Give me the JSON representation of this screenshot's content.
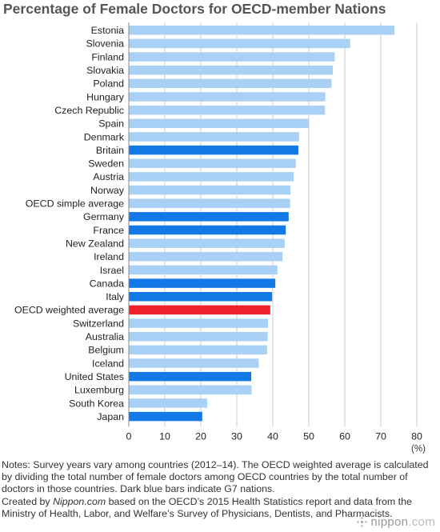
{
  "chart_data": {
    "type": "bar",
    "orientation": "horizontal",
    "title": "Percentage of Female Doctors for OECD-member Nations",
    "unit_label": "(%)",
    "xlim": [
      0,
      80
    ],
    "xticks": [
      0,
      10,
      20,
      30,
      40,
      50,
      60,
      70,
      80
    ],
    "grid": "vertical",
    "categories": [
      "Estonia",
      "Slovenia",
      "Finland",
      "Slovakia",
      "Poland",
      "Hungary",
      "Czech Republic",
      "Spain",
      "Denmark",
      "Britain",
      "Sweden",
      "Austria",
      "Norway",
      "OECD simple average",
      "Germany",
      "France",
      "New Zealand",
      "Ireland",
      "Israel",
      "Canada",
      "Italy",
      "OECD weighted average",
      "Switzerland",
      "Australia",
      "Belgium",
      "Iceland",
      "United States",
      "Luxemburg",
      "South Korea",
      "Japan"
    ],
    "values": [
      73.8,
      61.5,
      57.2,
      56.7,
      56.3,
      54.6,
      54.5,
      50.0,
      47.3,
      47.1,
      46.4,
      45.8,
      44.9,
      44.8,
      44.4,
      43.6,
      43.3,
      42.7,
      41.3,
      40.7,
      39.8,
      39.3,
      38.7,
      38.6,
      38.4,
      36.1,
      34.0,
      34.1,
      21.8,
      20.4
    ],
    "groups": [
      "other",
      "other",
      "other",
      "other",
      "other",
      "other",
      "other",
      "other",
      "other",
      "g7",
      "other",
      "other",
      "other",
      "other",
      "g7",
      "g7",
      "other",
      "other",
      "other",
      "g7",
      "g7",
      "weighted",
      "other",
      "other",
      "other",
      "other",
      "g7",
      "other",
      "other",
      "g7"
    ],
    "colors": {
      "other": "#a8d1f5",
      "g7": "#1379e6",
      "weighted": "#f0202a",
      "grid": "#cccccc",
      "axis": "#888888"
    }
  },
  "notes": {
    "text": "Notes: Survey years vary among countries (2012–14). The OECD weighted average is calculated by dividing the total number of female doctors among OECD countries by the total number of doctors in those countries. Dark blue bars indicate G7 nations.",
    "credit_prefix": "Created by ",
    "credit_site": "Nippon.com",
    "credit_rest": " based on the OECD’s 2015 Health Statistics report and data from the Ministry of Health, Labor, and Welfare’s Survey of Physicians, Dentists, and Pharmacists."
  },
  "logo": {
    "name": "nippon",
    "suffix": ".com",
    "icon": "nippon-logo-icon"
  }
}
